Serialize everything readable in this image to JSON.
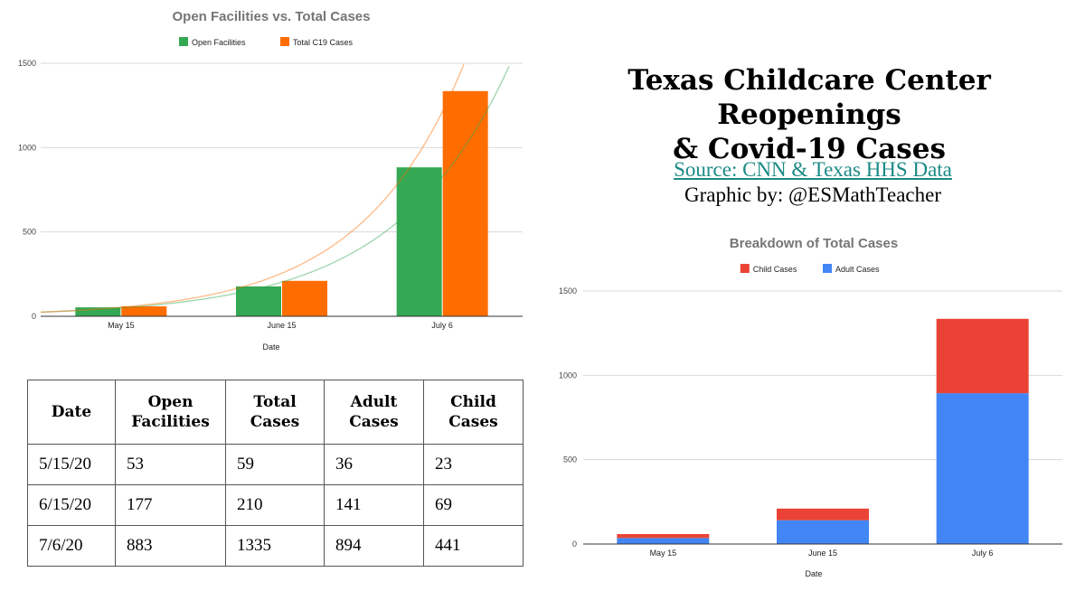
{
  "headline": {
    "line1": "Texas Childcare Center Reopenings",
    "line2": "& Covid-19 Cases",
    "source": "Source: CNN & Texas HHS Data",
    "credit": "Graphic by: @ESMathTeacher"
  },
  "chart_data": [
    {
      "type": "bar",
      "title": "Open Facilities vs. Total Cases",
      "xlabel": "Date",
      "ylabel": "",
      "categories": [
        "May 15",
        "June 15",
        "July 6"
      ],
      "series": [
        {
          "name": "Open Facilities",
          "values": [
            53,
            177,
            883
          ],
          "color": "#34a853"
        },
        {
          "name": "Total C19 Cases",
          "values": [
            59,
            210,
            1335
          ],
          "color": "#ff6d01"
        }
      ],
      "trendlines": "exponential",
      "ylim": [
        0,
        1500
      ],
      "yticks": [
        0,
        500,
        1000,
        1500
      ],
      "legend": "top",
      "grid": true
    },
    {
      "type": "bar",
      "stacked": true,
      "title": "Breakdown of Total Cases",
      "xlabel": "Date",
      "ylabel": "",
      "categories": [
        "May 15",
        "June 15",
        "July 6"
      ],
      "series": [
        {
          "name": "Child Cases",
          "values": [
            23,
            69,
            441
          ],
          "color": "#ea4335"
        },
        {
          "name": "Adult Cases",
          "values": [
            36,
            141,
            894
          ],
          "color": "#4285f4"
        }
      ],
      "ylim": [
        0,
        1500
      ],
      "yticks": [
        0,
        500,
        1000,
        1500
      ],
      "legend": "top",
      "grid": true
    }
  ],
  "table": {
    "headers": [
      [
        "Date"
      ],
      [
        "Open",
        "Facilities"
      ],
      [
        "Total",
        "Cases"
      ],
      [
        "Adult",
        "Cases"
      ],
      [
        "Child",
        "Cases"
      ]
    ],
    "rows": [
      [
        "5/15/20",
        "53",
        "59",
        "36",
        "23"
      ],
      [
        "6/15/20",
        "177",
        "210",
        "141",
        "69"
      ],
      [
        "7/6/20",
        "883",
        "1335",
        "894",
        "441"
      ]
    ]
  }
}
